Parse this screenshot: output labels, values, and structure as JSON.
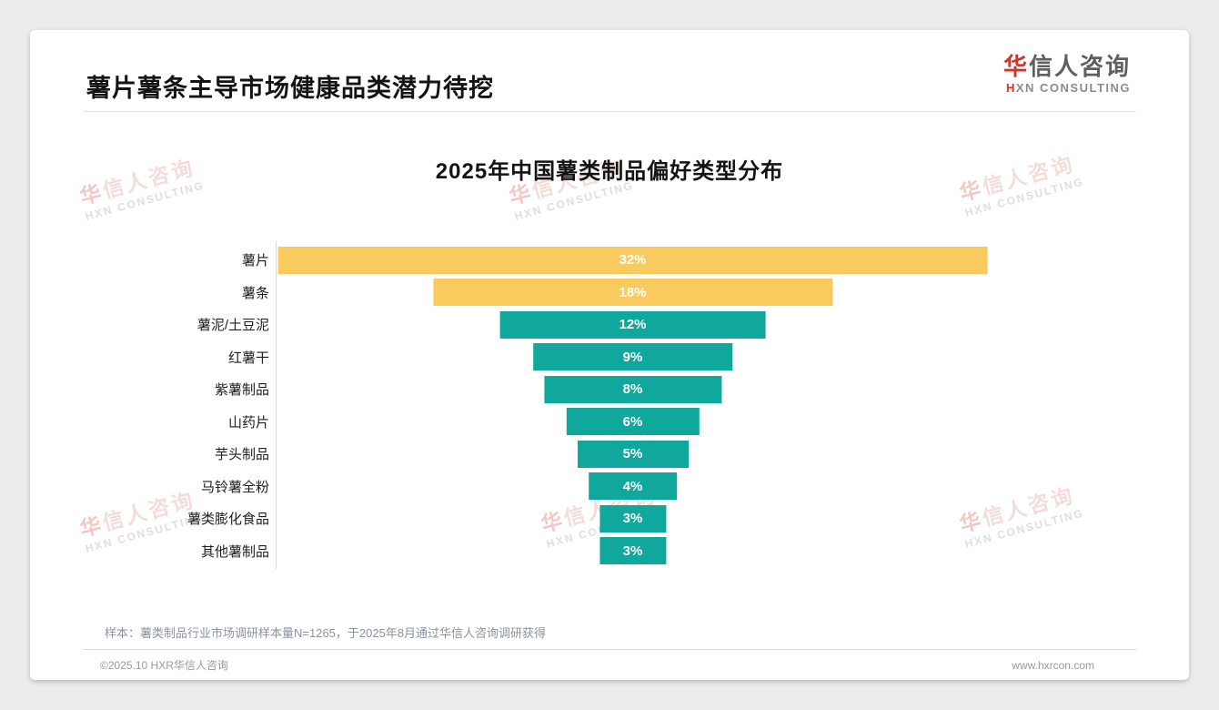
{
  "page": {
    "title": "薯片薯条主导市场健康品类潜力待挖",
    "logo": {
      "cn_first": "华",
      "cn_rest": "信人咨询",
      "en_first": "H",
      "en_rest": "XN CONSULTING"
    },
    "watermark": {
      "cn_first": "华",
      "cn_rest": "信人咨询",
      "en": "HXN CONSULTING"
    },
    "note": "样本：薯类制品行业市场调研样本量N=1265，于2025年8月通过华信人咨询调研获得",
    "footer": {
      "copyright": "©2025.10 HXR华信人咨询",
      "website": "www.hxrcon.com"
    }
  },
  "chart_data": {
    "type": "bar",
    "variant": "horizontal-centered-funnel",
    "title": "2025年中国薯类制品偏好类型分布",
    "categories": [
      "薯片",
      "薯条",
      "薯泥/土豆泥",
      "红薯干",
      "紫薯制品",
      "山药片",
      "芋头制品",
      "马铃薯全粉",
      "薯类膨化食品",
      "其他薯制品"
    ],
    "values": [
      32,
      18,
      12,
      9,
      8,
      6,
      5,
      4,
      3,
      3
    ],
    "unit": "%",
    "value_labels": [
      "32%",
      "18%",
      "12%",
      "9%",
      "8%",
      "6%",
      "5%",
      "4%",
      "3%",
      "3%"
    ],
    "highlight_count": 2,
    "colors": {
      "highlight": "#F9CB5F",
      "default": "#10A89C"
    },
    "value_label_color": "#ffffff",
    "xlim": [
      0,
      32
    ],
    "legend": null,
    "grid": false
  }
}
